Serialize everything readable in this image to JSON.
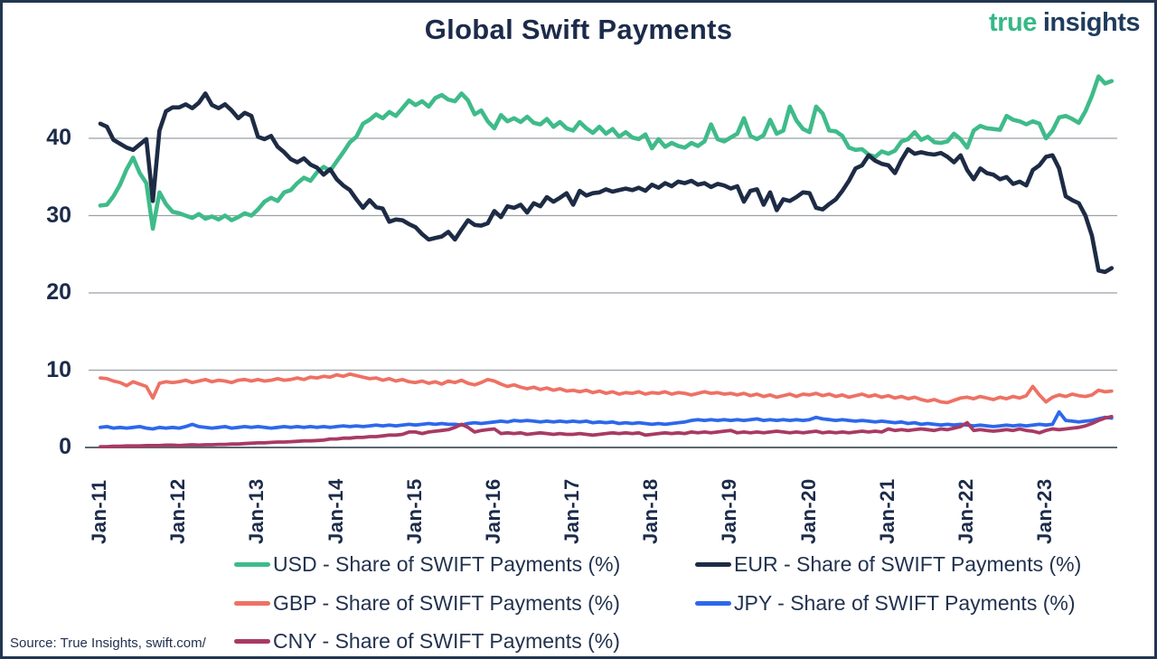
{
  "header": {
    "title": "Global Swift Payments",
    "logo": {
      "part1": "true",
      "part2": "insights",
      "color1": "#36b888",
      "color2": "#1f3c5e"
    }
  },
  "source_note": "Source: True Insights, swift.com/",
  "chart_data": {
    "type": "line",
    "title": "Global Swift Payments",
    "x_unit": "month",
    "x_range": [
      "Jan-2011",
      "Nov-2023"
    ],
    "x_tick_labels": [
      "Jan-11",
      "Jan-12",
      "Jan-13",
      "Jan-14",
      "Jan-15",
      "Jan-16",
      "Jan-17",
      "Jan-18",
      "Jan-19",
      "Jan-20",
      "Jan-21",
      "Jan-22",
      "Jan-23"
    ],
    "x_tick_month_indices": [
      0,
      12,
      24,
      36,
      48,
      60,
      72,
      84,
      96,
      108,
      120,
      132,
      144
    ],
    "ylim": [
      0,
      50
    ],
    "yticks": [
      0,
      10,
      20,
      30,
      40
    ],
    "grid": "horizontal-gray-lines",
    "legend_position": "bottom",
    "gridline_color": "#9aa0a6",
    "zeroline_color": "#5c6773",
    "series": [
      {
        "name": "USD",
        "legend_label": "USD - Share of SWIFT Payments (%)",
        "color": "#3fbb8a",
        "values": [
          31.3,
          31.4,
          32.5,
          34.0,
          36.0,
          37.5,
          35.5,
          34.2,
          28.3,
          33.0,
          31.5,
          30.5,
          30.3,
          30.0,
          29.7,
          30.2,
          29.6,
          29.9,
          29.5,
          30.0,
          29.4,
          29.8,
          30.3,
          30.0,
          30.8,
          31.8,
          32.3,
          31.9,
          33.0,
          33.3,
          34.2,
          34.9,
          34.5,
          35.6,
          36.3,
          35.8,
          37.0,
          38.2,
          39.5,
          40.2,
          41.9,
          42.4,
          43.1,
          42.6,
          43.4,
          42.9,
          43.9,
          44.9,
          44.3,
          44.8,
          44.1,
          45.2,
          45.6,
          45.0,
          44.8,
          45.8,
          44.9,
          43.1,
          43.6,
          42.2,
          41.3,
          43.0,
          42.2,
          42.6,
          42.1,
          42.8,
          42.0,
          41.8,
          42.5,
          41.5,
          42.1,
          41.3,
          41.0,
          42.1,
          41.3,
          40.7,
          41.5,
          40.6,
          41.2,
          40.2,
          40.8,
          40.1,
          39.9,
          40.5,
          38.7,
          39.9,
          38.9,
          39.4,
          39.0,
          38.8,
          39.4,
          39.0,
          39.6,
          41.8,
          39.9,
          39.6,
          40.1,
          40.6,
          42.6,
          40.3,
          39.9,
          40.4,
          42.4,
          40.6,
          41.0,
          44.1,
          42.3,
          41.2,
          40.8,
          44.1,
          43.2,
          41.0,
          40.9,
          40.3,
          38.8,
          38.5,
          38.6,
          37.9,
          37.6,
          38.3,
          38.0,
          38.4,
          39.6,
          39.9,
          40.8,
          39.8,
          40.2,
          39.5,
          39.4,
          39.6,
          40.6,
          39.9,
          38.8,
          41.0,
          41.6,
          41.3,
          41.2,
          41.1,
          42.9,
          42.4,
          42.2,
          41.8,
          42.2,
          41.9,
          40.0,
          41.0,
          42.7,
          42.9,
          42.5,
          42.0,
          43.5,
          45.5,
          48.0,
          47.1,
          47.4
        ]
      },
      {
        "name": "EUR",
        "legend_label": "EUR - Share of SWIFT Payments (%)",
        "color": "#1d2b45",
        "values": [
          41.9,
          41.5,
          39.8,
          39.3,
          38.8,
          38.5,
          39.2,
          39.9,
          31.9,
          41.0,
          43.5,
          44.0,
          44.0,
          44.4,
          43.9,
          44.6,
          45.8,
          44.3,
          43.9,
          44.4,
          43.6,
          42.6,
          43.3,
          42.9,
          40.2,
          39.9,
          40.3,
          38.9,
          38.2,
          37.3,
          36.9,
          37.4,
          36.6,
          36.2,
          35.3,
          36.0,
          34.7,
          33.9,
          33.3,
          32.1,
          31.0,
          32.0,
          31.1,
          30.9,
          29.2,
          29.5,
          29.4,
          28.9,
          28.5,
          27.6,
          26.9,
          27.1,
          27.3,
          27.9,
          26.9,
          28.2,
          29.4,
          28.8,
          28.7,
          29.0,
          30.6,
          29.8,
          31.2,
          31.0,
          31.4,
          30.4,
          31.6,
          31.2,
          32.4,
          31.8,
          32.3,
          32.9,
          31.4,
          33.2,
          32.6,
          32.9,
          33.0,
          33.4,
          33.1,
          33.3,
          33.5,
          33.3,
          33.6,
          33.2,
          34.0,
          33.6,
          34.2,
          33.8,
          34.4,
          34.2,
          34.5,
          34.0,
          34.2,
          33.7,
          34.1,
          33.9,
          33.5,
          33.8,
          31.8,
          33.2,
          33.4,
          31.4,
          33.0,
          30.7,
          32.1,
          31.9,
          32.4,
          33.0,
          32.9,
          31.0,
          30.8,
          31.5,
          32.1,
          33.2,
          34.5,
          36.1,
          36.5,
          37.8,
          37.1,
          36.7,
          36.5,
          35.5,
          37.2,
          38.6,
          38.0,
          38.2,
          38.0,
          37.9,
          38.1,
          37.6,
          36.9,
          37.8,
          35.9,
          34.7,
          36.1,
          35.5,
          35.3,
          34.7,
          35.0,
          34.1,
          34.4,
          33.9,
          35.9,
          36.5,
          37.6,
          37.8,
          36.1,
          32.5,
          32.0,
          31.6,
          30.0,
          27.4,
          22.9,
          22.7,
          23.2
        ]
      },
      {
        "name": "GBP",
        "legend_label": "GBP - Share of SWIFT Payments (%)",
        "color": "#ee7164",
        "values": [
          9.0,
          8.9,
          8.6,
          8.4,
          8.0,
          8.5,
          8.2,
          7.9,
          6.4,
          8.3,
          8.5,
          8.4,
          8.5,
          8.7,
          8.4,
          8.6,
          8.8,
          8.5,
          8.7,
          8.6,
          8.4,
          8.7,
          8.8,
          8.6,
          8.8,
          8.6,
          8.7,
          8.9,
          8.7,
          8.8,
          9.0,
          8.8,
          9.1,
          9.0,
          9.2,
          9.1,
          9.4,
          9.2,
          9.5,
          9.3,
          9.1,
          8.9,
          9.0,
          8.7,
          8.9,
          8.6,
          8.8,
          8.5,
          8.4,
          8.6,
          8.3,
          8.5,
          8.2,
          8.6,
          8.4,
          8.7,
          8.3,
          8.1,
          8.4,
          8.8,
          8.6,
          8.2,
          7.9,
          8.1,
          7.8,
          7.6,
          7.8,
          7.5,
          7.7,
          7.4,
          7.6,
          7.3,
          7.4,
          7.2,
          7.4,
          7.1,
          7.3,
          7.0,
          7.2,
          6.9,
          7.1,
          7.0,
          7.2,
          6.9,
          7.1,
          7.0,
          7.2,
          6.9,
          7.1,
          7.0,
          6.8,
          7.0,
          7.2,
          7.0,
          7.1,
          6.9,
          7.0,
          6.8,
          7.0,
          6.7,
          6.9,
          6.6,
          6.8,
          6.5,
          6.7,
          6.9,
          6.6,
          6.9,
          6.8,
          7.0,
          6.7,
          6.9,
          6.6,
          6.8,
          6.5,
          6.7,
          6.9,
          6.6,
          6.8,
          6.5,
          6.7,
          6.4,
          6.6,
          6.3,
          6.5,
          6.2,
          6.0,
          6.2,
          5.9,
          5.8,
          6.1,
          6.4,
          6.5,
          6.3,
          6.6,
          6.4,
          6.2,
          6.5,
          6.3,
          6.6,
          6.4,
          6.7,
          7.9,
          6.8,
          5.9,
          6.5,
          6.8,
          6.6,
          6.9,
          6.7,
          6.6,
          6.8,
          7.4,
          7.2,
          7.3
        ]
      },
      {
        "name": "JPY",
        "legend_label": "JPY - Share of SWIFT Payments (%)",
        "color": "#2d68eb",
        "values": [
          2.6,
          2.7,
          2.5,
          2.6,
          2.5,
          2.6,
          2.7,
          2.5,
          2.4,
          2.6,
          2.5,
          2.6,
          2.5,
          2.7,
          3.0,
          2.7,
          2.6,
          2.5,
          2.6,
          2.7,
          2.5,
          2.6,
          2.7,
          2.6,
          2.7,
          2.6,
          2.5,
          2.6,
          2.7,
          2.6,
          2.7,
          2.6,
          2.7,
          2.6,
          2.7,
          2.6,
          2.7,
          2.8,
          2.7,
          2.8,
          2.7,
          2.8,
          2.9,
          2.8,
          2.9,
          2.8,
          2.9,
          3.0,
          2.9,
          3.0,
          3.1,
          3.0,
          3.1,
          3.0,
          3.0,
          2.9,
          3.1,
          3.2,
          3.1,
          3.2,
          3.3,
          3.4,
          3.3,
          3.5,
          3.4,
          3.5,
          3.4,
          3.3,
          3.4,
          3.3,
          3.4,
          3.3,
          3.4,
          3.3,
          3.4,
          3.2,
          3.3,
          3.2,
          3.3,
          3.1,
          3.2,
          3.1,
          3.2,
          3.1,
          3.0,
          3.1,
          3.0,
          3.1,
          3.2,
          3.3,
          3.5,
          3.6,
          3.5,
          3.6,
          3.5,
          3.6,
          3.5,
          3.6,
          3.5,
          3.6,
          3.7,
          3.5,
          3.6,
          3.5,
          3.6,
          3.5,
          3.6,
          3.5,
          3.6,
          3.9,
          3.7,
          3.6,
          3.5,
          3.6,
          3.5,
          3.4,
          3.5,
          3.4,
          3.3,
          3.4,
          3.3,
          3.2,
          3.3,
          3.1,
          3.2,
          3.0,
          3.1,
          3.0,
          2.9,
          3.0,
          2.9,
          3.0,
          2.9,
          2.8,
          2.9,
          2.8,
          2.7,
          2.8,
          2.9,
          2.8,
          2.9,
          2.8,
          2.9,
          3.0,
          2.9,
          3.0,
          4.6,
          3.5,
          3.4,
          3.3,
          3.4,
          3.5,
          3.7,
          3.9,
          3.8
        ]
      },
      {
        "name": "CNY",
        "legend_label": "CNY - Share of SWIFT Payments (%)",
        "color": "#a83a63",
        "values": [
          0.1,
          0.1,
          0.15,
          0.15,
          0.2,
          0.2,
          0.2,
          0.25,
          0.25,
          0.25,
          0.3,
          0.3,
          0.25,
          0.3,
          0.35,
          0.3,
          0.35,
          0.35,
          0.4,
          0.4,
          0.45,
          0.45,
          0.5,
          0.55,
          0.6,
          0.6,
          0.65,
          0.7,
          0.7,
          0.75,
          0.8,
          0.85,
          0.85,
          0.9,
          0.95,
          1.1,
          1.1,
          1.2,
          1.2,
          1.3,
          1.3,
          1.4,
          1.4,
          1.5,
          1.6,
          1.6,
          1.7,
          2.0,
          2.0,
          1.8,
          2.0,
          2.1,
          2.2,
          2.3,
          2.6,
          3.0,
          2.6,
          2.0,
          2.2,
          2.3,
          2.4,
          1.8,
          1.9,
          1.8,
          1.9,
          1.7,
          1.8,
          1.9,
          1.8,
          1.7,
          1.8,
          1.7,
          1.7,
          1.8,
          1.7,
          1.6,
          1.7,
          1.8,
          1.9,
          1.8,
          1.9,
          1.8,
          1.9,
          1.6,
          1.7,
          1.8,
          1.9,
          1.8,
          1.9,
          1.8,
          2.0,
          1.9,
          2.0,
          1.9,
          2.0,
          2.1,
          2.2,
          1.9,
          2.0,
          1.9,
          2.0,
          1.9,
          2.0,
          2.1,
          2.0,
          1.9,
          2.0,
          1.9,
          2.0,
          2.1,
          1.9,
          2.0,
          1.9,
          2.0,
          1.9,
          2.0,
          2.1,
          2.0,
          2.1,
          2.0,
          2.4,
          2.2,
          2.3,
          2.2,
          2.3,
          2.4,
          2.3,
          2.2,
          2.4,
          2.3,
          2.5,
          2.7,
          3.2,
          2.2,
          2.3,
          2.2,
          2.1,
          2.2,
          2.3,
          2.2,
          2.4,
          2.2,
          2.1,
          1.9,
          2.2,
          2.4,
          2.3,
          2.4,
          2.5,
          2.6,
          2.8,
          3.1,
          3.5,
          3.8,
          4.0
        ]
      }
    ]
  }
}
